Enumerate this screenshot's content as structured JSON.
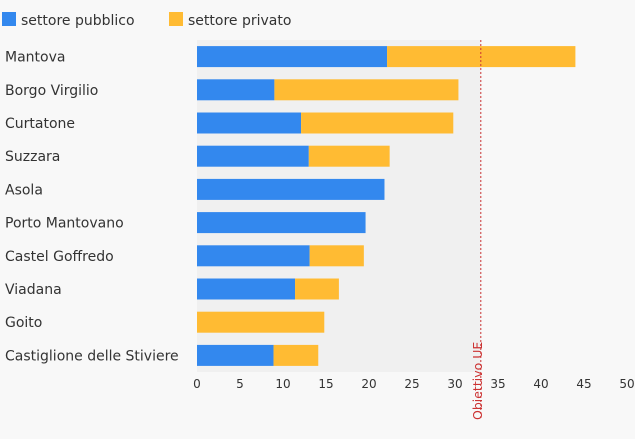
{
  "colors": {
    "background": "#f8f8f8",
    "plot_shade": "#f0f0f0",
    "pubblico": "#3388ee",
    "privato": "#ffbb33",
    "reference": "#cc3333"
  },
  "chart_data": {
    "type": "bar",
    "orientation": "horizontal",
    "stacked": true,
    "categories": [
      "Mantova",
      "Borgo Virgilio",
      "Curtatone",
      "Suzzara",
      "Asola",
      "Porto Mantovano",
      "Castel Goffredo",
      "Viadana",
      "Goito",
      "Castiglione delle Stiviere"
    ],
    "series": [
      {
        "name": "settore pubblico",
        "color": "#3388ee",
        "values": [
          22.1,
          9.0,
          12.1,
          13.0,
          21.8,
          19.6,
          13.1,
          11.4,
          0,
          8.9
        ]
      },
      {
        "name": "settore privato",
        "color": "#ffbb33",
        "values": [
          21.9,
          21.4,
          17.7,
          9.4,
          0,
          0,
          6.3,
          5.1,
          14.8,
          5.2
        ]
      }
    ],
    "xlim": [
      0,
      50
    ],
    "xticks": [
      0,
      5,
      10,
      15,
      20,
      25,
      30,
      35,
      40,
      45,
      50
    ],
    "reference_line": {
      "value": 33,
      "label": "Obiettivo UE"
    },
    "legend_position": "top-left",
    "grid": false
  }
}
